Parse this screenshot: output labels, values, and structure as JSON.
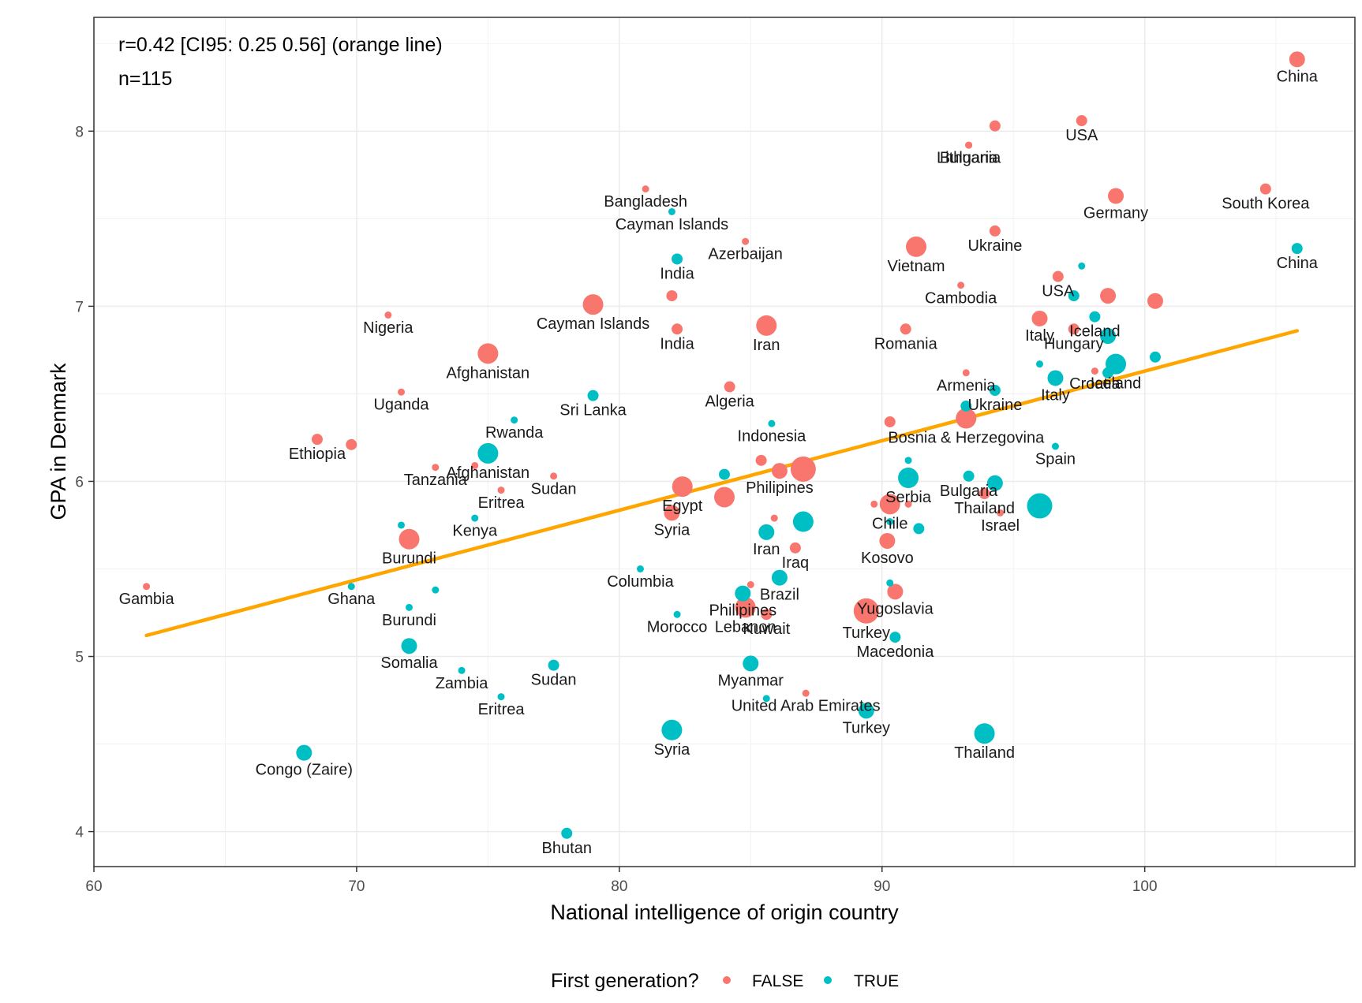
{
  "chart_data": {
    "type": "scatter",
    "xlabel": "National intelligence of origin country",
    "ylabel": "GPA in Denmark",
    "xlim": [
      60,
      108
    ],
    "ylim": [
      3.8,
      8.65
    ],
    "x_ticks": [
      60,
      70,
      80,
      90,
      100
    ],
    "y_ticks": [
      4,
      5,
      6,
      7,
      8
    ],
    "grid": true,
    "annotations": [
      "r=0.42 [CI95: 0.25 0.56] (orange line)",
      "n=115"
    ],
    "legend": {
      "title": "First generation?",
      "placement": "bottom",
      "entries": [
        {
          "label": "FALSE",
          "color": "#f8766d"
        },
        {
          "label": "TRUE",
          "color": "#00bfc4"
        }
      ]
    },
    "fit_line": {
      "color": "#ffa500",
      "x": [
        62,
        105.8
      ],
      "y": [
        5.12,
        6.86
      ]
    },
    "series": [
      {
        "name": "FALSE",
        "color": "#f8766d",
        "points": [
          {
            "x": 105.8,
            "y": 8.41,
            "s": 3,
            "label": "China"
          },
          {
            "x": 97.6,
            "y": 8.06,
            "s": 2,
            "label": "USA"
          },
          {
            "x": 94.3,
            "y": 8.03,
            "s": 2,
            "label": ""
          },
          {
            "x": 93.3,
            "y": 7.92,
            "s": 1,
            "label": "Lithuania"
          },
          {
            "x": 93.3,
            "y": 7.92,
            "s": 1,
            "label": "Bulgaria"
          },
          {
            "x": 81.0,
            "y": 7.67,
            "s": 1,
            "label": "Bangladesh"
          },
          {
            "x": 98.9,
            "y": 7.63,
            "s": 3,
            "label": "Germany"
          },
          {
            "x": 104.6,
            "y": 7.67,
            "s": 2,
            "label": "South Korea"
          },
          {
            "x": 94.3,
            "y": 7.43,
            "s": 2,
            "label": "Ukraine"
          },
          {
            "x": 84.8,
            "y": 7.37,
            "s": 1,
            "label": "Azerbaijan"
          },
          {
            "x": 91.3,
            "y": 7.34,
            "s": 4,
            "label": "Vietnam"
          },
          {
            "x": 96.7,
            "y": 7.17,
            "s": 2,
            "label": "USA"
          },
          {
            "x": 93.0,
            "y": 7.12,
            "s": 1,
            "label": "Cambodia"
          },
          {
            "x": 82.0,
            "y": 7.06,
            "s": 2,
            "label": ""
          },
          {
            "x": 79.0,
            "y": 7.01,
            "s": 4,
            "label": "Cayman Islands"
          },
          {
            "x": 98.6,
            "y": 7.06,
            "s": 3,
            "label": ""
          },
          {
            "x": 100.4,
            "y": 7.03,
            "s": 3,
            "label": ""
          },
          {
            "x": 71.2,
            "y": 6.95,
            "s": 1,
            "label": "Nigeria"
          },
          {
            "x": 85.6,
            "y": 6.89,
            "s": 4,
            "label": "Iran"
          },
          {
            "x": 82.2,
            "y": 6.87,
            "s": 2,
            "label": "India"
          },
          {
            "x": 96.0,
            "y": 6.93,
            "s": 3,
            "label": "Italy"
          },
          {
            "x": 97.3,
            "y": 6.87,
            "s": 2,
            "label": "Hungary"
          },
          {
            "x": 90.9,
            "y": 6.87,
            "s": 2,
            "label": "Romania"
          },
          {
            "x": 75.0,
            "y": 6.73,
            "s": 4,
            "label": "Afghanistan"
          },
          {
            "x": 93.2,
            "y": 6.62,
            "s": 1,
            "label": "Armenia"
          },
          {
            "x": 98.1,
            "y": 6.63,
            "s": 1,
            "label": "Croatia"
          },
          {
            "x": 84.2,
            "y": 6.54,
            "s": 2,
            "label": "Algeria"
          },
          {
            "x": 71.7,
            "y": 6.51,
            "s": 1,
            "label": "Uganda"
          },
          {
            "x": 93.2,
            "y": 6.36,
            "s": 4,
            "label": "Bosnia & Herzegovina"
          },
          {
            "x": 90.3,
            "y": 6.34,
            "s": 2,
            "label": ""
          },
          {
            "x": 68.5,
            "y": 6.24,
            "s": 2,
            "label": "Ethiopia"
          },
          {
            "x": 69.8,
            "y": 6.21,
            "s": 2,
            "label": ""
          },
          {
            "x": 85.4,
            "y": 6.12,
            "s": 2,
            "label": ""
          },
          {
            "x": 86.1,
            "y": 6.06,
            "s": 3,
            "label": "Philipines"
          },
          {
            "x": 87.0,
            "y": 6.07,
            "s": 5,
            "label": ""
          },
          {
            "x": 73.0,
            "y": 6.08,
            "s": 1,
            "label": "Tanzania"
          },
          {
            "x": 74.5,
            "y": 6.09,
            "s": 1,
            "label": ""
          },
          {
            "x": 77.5,
            "y": 6.03,
            "s": 1,
            "label": "Sudan"
          },
          {
            "x": 75.5,
            "y": 5.95,
            "s": 1,
            "label": "Eritrea"
          },
          {
            "x": 82.4,
            "y": 5.97,
            "s": 4,
            "label": "Egypt"
          },
          {
            "x": 84.0,
            "y": 5.91,
            "s": 4,
            "label": ""
          },
          {
            "x": 82.0,
            "y": 5.82,
            "s": 3,
            "label": "Syria"
          },
          {
            "x": 90.3,
            "y": 5.87,
            "s": 4,
            "label": "Chile"
          },
          {
            "x": 89.7,
            "y": 5.87,
            "s": 1,
            "label": ""
          },
          {
            "x": 91.0,
            "y": 5.87,
            "s": 1,
            "label": ""
          },
          {
            "x": 93.9,
            "y": 5.93,
            "s": 2,
            "label": "Thailand"
          },
          {
            "x": 94.5,
            "y": 5.82,
            "s": 1,
            "label": "Israel"
          },
          {
            "x": 85.9,
            "y": 5.79,
            "s": 1,
            "label": ""
          },
          {
            "x": 72.0,
            "y": 5.67,
            "s": 4,
            "label": "Burundi"
          },
          {
            "x": 90.2,
            "y": 5.66,
            "s": 3,
            "label": "Kosovo"
          },
          {
            "x": 86.7,
            "y": 5.62,
            "s": 2,
            "label": "Iraq"
          },
          {
            "x": 62.0,
            "y": 5.4,
            "s": 1,
            "label": "Gambia"
          },
          {
            "x": 85.0,
            "y": 5.41,
            "s": 1,
            "label": ""
          },
          {
            "x": 90.5,
            "y": 5.37,
            "s": 3,
            "label": "Yugoslavia"
          },
          {
            "x": 84.8,
            "y": 5.28,
            "s": 4,
            "label": "Lebanon"
          },
          {
            "x": 85.6,
            "y": 5.24,
            "s": 2,
            "label": "Kuwait"
          },
          {
            "x": 89.4,
            "y": 5.26,
            "s": 5,
            "label": "Turkey"
          },
          {
            "x": 87.1,
            "y": 4.79,
            "s": 1,
            "label": "United Arab Emirates"
          }
        ]
      },
      {
        "name": "TRUE",
        "color": "#00bfc4",
        "points": [
          {
            "x": 105.8,
            "y": 7.33,
            "s": 2,
            "label": "China"
          },
          {
            "x": 82.0,
            "y": 7.54,
            "s": 1,
            "label": "Cayman Islands"
          },
          {
            "x": 82.2,
            "y": 7.27,
            "s": 2,
            "label": "India"
          },
          {
            "x": 97.6,
            "y": 7.23,
            "s": 1,
            "label": ""
          },
          {
            "x": 97.3,
            "y": 7.06,
            "s": 2,
            "label": ""
          },
          {
            "x": 98.1,
            "y": 6.94,
            "s": 2,
            "label": "Iceland"
          },
          {
            "x": 98.6,
            "y": 6.83,
            "s": 3,
            "label": ""
          },
          {
            "x": 98.9,
            "y": 6.67,
            "s": 4,
            "label": "Iceland"
          },
          {
            "x": 100.4,
            "y": 6.71,
            "s": 2,
            "label": ""
          },
          {
            "x": 96.0,
            "y": 6.67,
            "s": 1,
            "label": ""
          },
          {
            "x": 98.6,
            "y": 6.62,
            "s": 2,
            "label": ""
          },
          {
            "x": 96.6,
            "y": 6.59,
            "s": 3,
            "label": "Italy"
          },
          {
            "x": 94.3,
            "y": 6.52,
            "s": 2,
            "label": "Ukraine"
          },
          {
            "x": 93.2,
            "y": 6.43,
            "s": 2,
            "label": ""
          },
          {
            "x": 79.0,
            "y": 6.49,
            "s": 2,
            "label": "Sri Lanka"
          },
          {
            "x": 85.8,
            "y": 6.33,
            "s": 1,
            "label": "Indonesia"
          },
          {
            "x": 76.0,
            "y": 6.35,
            "s": 1,
            "label": "Rwanda"
          },
          {
            "x": 96.6,
            "y": 6.2,
            "s": 1,
            "label": "Spain"
          },
          {
            "x": 75.0,
            "y": 6.16,
            "s": 4,
            "label": "Afghanistan"
          },
          {
            "x": 91.0,
            "y": 6.12,
            "s": 1,
            "label": ""
          },
          {
            "x": 84.0,
            "y": 6.04,
            "s": 2,
            "label": ""
          },
          {
            "x": 91.0,
            "y": 6.02,
            "s": 4,
            "label": "Serbia"
          },
          {
            "x": 93.3,
            "y": 6.03,
            "s": 2,
            "label": "Bulgaria"
          },
          {
            "x": 94.3,
            "y": 5.99,
            "s": 3,
            "label": ""
          },
          {
            "x": 96.0,
            "y": 5.86,
            "s": 5,
            "label": ""
          },
          {
            "x": 74.5,
            "y": 5.79,
            "s": 1,
            "label": "Kenya"
          },
          {
            "x": 71.7,
            "y": 5.75,
            "s": 1,
            "label": ""
          },
          {
            "x": 87.0,
            "y": 5.77,
            "s": 4,
            "label": ""
          },
          {
            "x": 90.3,
            "y": 5.77,
            "s": 1,
            "label": ""
          },
          {
            "x": 91.4,
            "y": 5.73,
            "s": 2,
            "label": ""
          },
          {
            "x": 85.6,
            "y": 5.71,
            "s": 3,
            "label": "Iran"
          },
          {
            "x": 80.8,
            "y": 5.5,
            "s": 1,
            "label": "Columbia"
          },
          {
            "x": 86.1,
            "y": 5.45,
            "s": 3,
            "label": "Brazil"
          },
          {
            "x": 69.8,
            "y": 5.4,
            "s": 1,
            "label": "Ghana"
          },
          {
            "x": 73.0,
            "y": 5.38,
            "s": 1,
            "label": ""
          },
          {
            "x": 84.7,
            "y": 5.36,
            "s": 3,
            "label": "Philipines"
          },
          {
            "x": 90.3,
            "y": 5.42,
            "s": 1,
            "label": ""
          },
          {
            "x": 72.0,
            "y": 5.28,
            "s": 1,
            "label": "Burundi"
          },
          {
            "x": 82.2,
            "y": 5.24,
            "s": 1,
            "label": "Morocco"
          },
          {
            "x": 90.5,
            "y": 5.11,
            "s": 2,
            "label": "Macedonia"
          },
          {
            "x": 72.0,
            "y": 5.06,
            "s": 3,
            "label": "Somalia"
          },
          {
            "x": 85.0,
            "y": 4.96,
            "s": 3,
            "label": "Myanmar"
          },
          {
            "x": 77.5,
            "y": 4.95,
            "s": 2,
            "label": "Sudan"
          },
          {
            "x": 74.0,
            "y": 4.92,
            "s": 1,
            "label": "Zambia"
          },
          {
            "x": 75.5,
            "y": 4.77,
            "s": 1,
            "label": "Eritrea"
          },
          {
            "x": 85.6,
            "y": 4.76,
            "s": 1,
            "label": ""
          },
          {
            "x": 89.4,
            "y": 4.69,
            "s": 3,
            "label": "Turkey"
          },
          {
            "x": 82.0,
            "y": 4.58,
            "s": 4,
            "label": "Syria"
          },
          {
            "x": 93.9,
            "y": 4.56,
            "s": 4,
            "label": "Thailand"
          },
          {
            "x": 68.0,
            "y": 4.45,
            "s": 3,
            "label": "Congo (Zaire)"
          },
          {
            "x": 78.0,
            "y": 3.99,
            "s": 2,
            "label": "Bhutan"
          }
        ]
      }
    ]
  }
}
